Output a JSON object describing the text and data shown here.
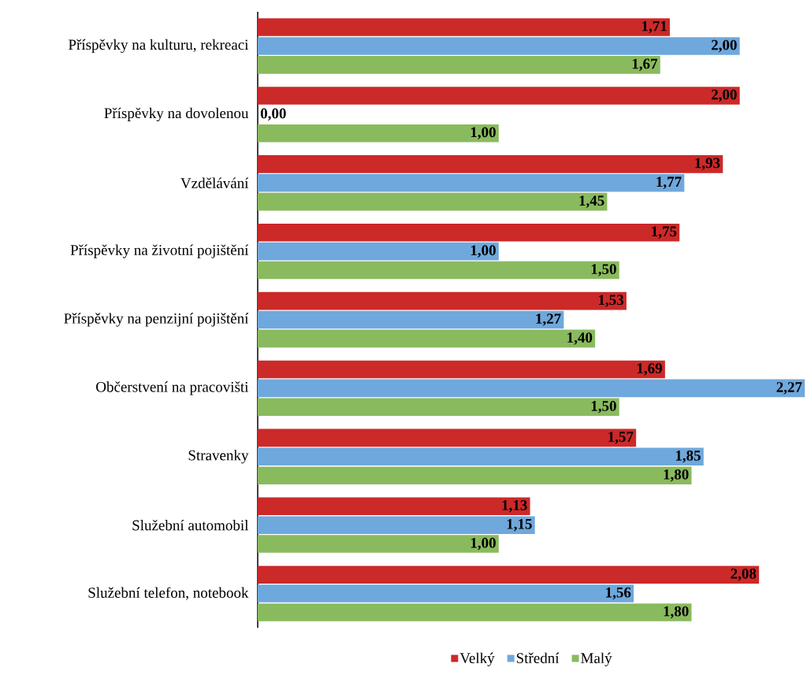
{
  "chart_data": {
    "type": "bar",
    "orientation": "horizontal",
    "legend": "bottom",
    "categories": [
      "Příspěvky na kulturu, rekreaci",
      "Příspěvky na dovolenou",
      "Vzdělávání",
      "Příspěvky na životní pojištění",
      "Příspěvky na penzijní pojištění",
      "Občerstvení na pracovišti",
      "Stravenky",
      "Služební automobil",
      "Služební telefon, notebook"
    ],
    "series": [
      {
        "name": "Velký",
        "color": "#cc2929",
        "values": [
          1.71,
          2.0,
          1.93,
          1.75,
          1.53,
          1.69,
          1.57,
          1.13,
          2.08
        ],
        "value_labels": [
          "1,71",
          "2,00",
          "1,93",
          "1,75",
          "1,53",
          "1,69",
          "1,57",
          "1,13",
          "2,08"
        ]
      },
      {
        "name": "Střední",
        "color": "#6fa8dc",
        "values": [
          2.0,
          0.0,
          1.77,
          1.0,
          1.27,
          2.27,
          1.85,
          1.15,
          1.56
        ],
        "value_labels": [
          "2,00",
          "0,00",
          "1,77",
          "1,00",
          "1,27",
          "2,27",
          "1,85",
          "1,15",
          "1,56"
        ]
      },
      {
        "name": "Malý",
        "color": "#8aba5e",
        "values": [
          1.67,
          1.0,
          1.45,
          1.5,
          1.4,
          1.5,
          1.8,
          1.0,
          1.8
        ],
        "value_labels": [
          "1,67",
          "1,00",
          "1,45",
          "1,50",
          "1,40",
          "1,50",
          "1,80",
          "1,00",
          "1,80"
        ]
      }
    ]
  }
}
